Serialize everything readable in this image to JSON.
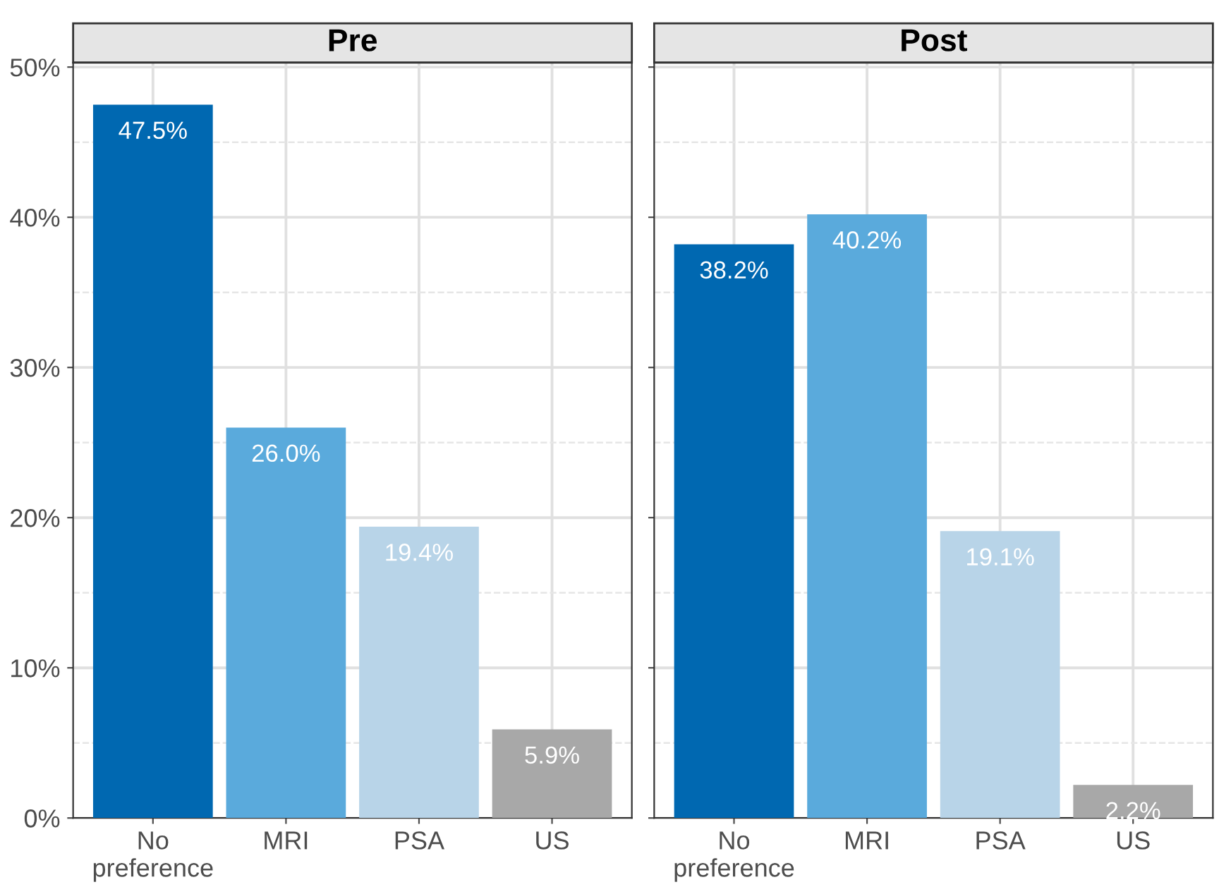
{
  "chart_data": [
    {
      "type": "bar",
      "title": "Pre",
      "categories": [
        "No\npreference",
        "MRI",
        "PSA",
        "US"
      ],
      "values": [
        47.5,
        26.0,
        19.4,
        5.9
      ],
      "colors": [
        "#0068b1",
        "#5aaadc",
        "#b8d4e8",
        "#a8a8a8"
      ],
      "value_labels": [
        "47.5%",
        "26.0%",
        "19.4%",
        "5.9%"
      ],
      "ylim": [
        0,
        50.3
      ],
      "yticks": [
        {
          "value": 0,
          "label": "0%"
        },
        {
          "value": 5,
          "label": null
        },
        {
          "value": 10,
          "label": "10%"
        },
        {
          "value": 15,
          "label": null
        },
        {
          "value": 20,
          "label": "20%"
        },
        {
          "value": 25,
          "label": null
        },
        {
          "value": 30,
          "label": "30%"
        },
        {
          "value": 35,
          "label": null
        },
        {
          "value": 40,
          "label": "40%"
        },
        {
          "value": 45,
          "label": null
        },
        {
          "value": 50,
          "label": "50%"
        }
      ],
      "grid": true
    },
    {
      "type": "bar",
      "title": "Post",
      "categories": [
        "No\npreference",
        "MRI",
        "PSA",
        "US"
      ],
      "values": [
        38.2,
        40.2,
        19.1,
        2.2
      ],
      "colors": [
        "#0068b1",
        "#5aaadc",
        "#b8d4e8",
        "#a8a8a8"
      ],
      "value_labels": [
        "38.2%",
        "40.2%",
        "19.1%",
        "2.2%"
      ],
      "ylim": [
        0,
        50.3
      ],
      "grid": true,
      "tick_labels": "x"
    }
  ]
}
